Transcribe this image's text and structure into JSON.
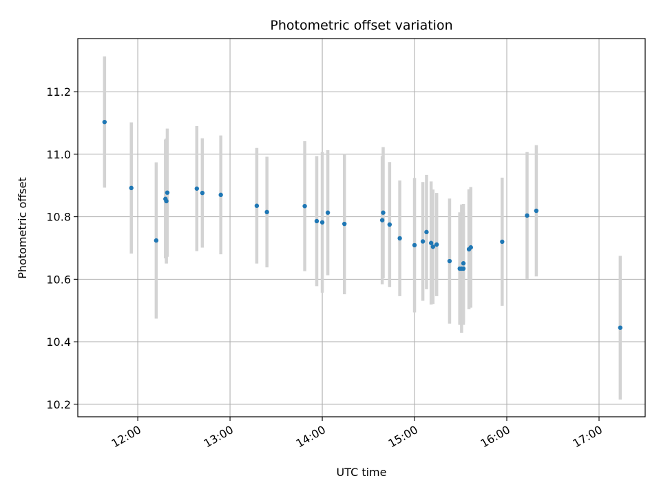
{
  "chart_data": {
    "type": "scatter",
    "title": "Photometric offset variation",
    "xlabel": "UTC time",
    "ylabel": "Photometric offset",
    "x_unit": "UTC time (decimal hours)",
    "xlim": [
      11.35,
      17.5
    ],
    "ylim": [
      10.16,
      11.37
    ],
    "x_ticks": [
      12,
      13,
      14,
      15,
      16,
      17
    ],
    "x_tick_labels": [
      "12:00",
      "13:00",
      "14:00",
      "15:00",
      "16:00",
      "17:00"
    ],
    "y_ticks": [
      10.2,
      10.4,
      10.6,
      10.8,
      11.0,
      11.2
    ],
    "y_tick_labels": [
      "10.2",
      "10.4",
      "10.6",
      "10.8",
      "11.0",
      "11.2"
    ],
    "grid": true,
    "colors": {
      "point": "#1f77b4",
      "errorbar": "#d3d3d3",
      "grid": "#b0b0b0"
    },
    "points": [
      {
        "x": 11.64,
        "y": 11.103,
        "err": 0.21
      },
      {
        "x": 11.93,
        "y": 10.892,
        "err": 0.21
      },
      {
        "x": 12.2,
        "y": 10.724,
        "err": 0.25
      },
      {
        "x": 12.3,
        "y": 10.857,
        "err": 0.19
      },
      {
        "x": 12.31,
        "y": 10.85,
        "err": 0.2
      },
      {
        "x": 12.32,
        "y": 10.877,
        "err": 0.205
      },
      {
        "x": 12.64,
        "y": 10.89,
        "err": 0.2
      },
      {
        "x": 12.7,
        "y": 10.876,
        "err": 0.175
      },
      {
        "x": 12.9,
        "y": 10.87,
        "err": 0.19
      },
      {
        "x": 13.29,
        "y": 10.835,
        "err": 0.185
      },
      {
        "x": 13.4,
        "y": 10.815,
        "err": 0.177
      },
      {
        "x": 13.81,
        "y": 10.834,
        "err": 0.208
      },
      {
        "x": 13.94,
        "y": 10.786,
        "err": 0.208
      },
      {
        "x": 14.0,
        "y": 10.782,
        "err": 0.225
      },
      {
        "x": 14.06,
        "y": 10.813,
        "err": 0.2
      },
      {
        "x": 14.24,
        "y": 10.777,
        "err": 0.225
      },
      {
        "x": 14.65,
        "y": 10.789,
        "err": 0.205
      },
      {
        "x": 14.66,
        "y": 10.813,
        "err": 0.21
      },
      {
        "x": 14.73,
        "y": 10.775,
        "err": 0.2
      },
      {
        "x": 14.84,
        "y": 10.731,
        "err": 0.185
      },
      {
        "x": 15.0,
        "y": 10.709,
        "err": 0.215
      },
      {
        "x": 15.09,
        "y": 10.721,
        "err": 0.19
      },
      {
        "x": 15.13,
        "y": 10.751,
        "err": 0.183
      },
      {
        "x": 15.18,
        "y": 10.716,
        "err": 0.197
      },
      {
        "x": 15.2,
        "y": 10.704,
        "err": 0.183
      },
      {
        "x": 15.24,
        "y": 10.711,
        "err": 0.165
      },
      {
        "x": 15.38,
        "y": 10.658,
        "err": 0.2
      },
      {
        "x": 15.49,
        "y": 10.634,
        "err": 0.18
      },
      {
        "x": 15.51,
        "y": 10.634,
        "err": 0.205
      },
      {
        "x": 15.53,
        "y": 10.634,
        "err": 0.18
      },
      {
        "x": 15.53,
        "y": 10.651,
        "err": 0.19
      },
      {
        "x": 15.59,
        "y": 10.696,
        "err": 0.192
      },
      {
        "x": 15.61,
        "y": 10.702,
        "err": 0.193
      },
      {
        "x": 15.95,
        "y": 10.72,
        "err": 0.205
      },
      {
        "x": 16.22,
        "y": 10.804,
        "err": 0.203
      },
      {
        "x": 16.32,
        "y": 10.819,
        "err": 0.21
      },
      {
        "x": 17.23,
        "y": 10.445,
        "err": 0.23
      }
    ]
  }
}
